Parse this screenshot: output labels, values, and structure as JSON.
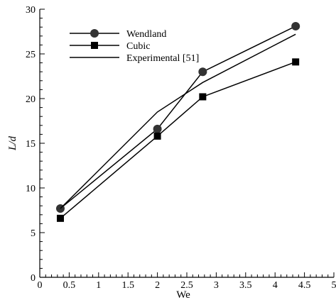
{
  "chart_data": {
    "type": "line",
    "title": "",
    "xlabel": "We",
    "ylabel": "L/d",
    "xlim": [
      0,
      5
    ],
    "ylim": [
      0,
      30
    ],
    "xticks": [
      "0",
      "0.5",
      "1",
      "1.5",
      "2",
      "2.5",
      "3",
      "3.5",
      "4",
      "4.5",
      "5"
    ],
    "yticks": [
      "0",
      "5",
      "10",
      "15",
      "20",
      "25",
      "30"
    ],
    "grid": false,
    "legend_position": "top-left",
    "series": [
      {
        "name": "Wendland",
        "marker": "circle",
        "color": "#000000",
        "x": [
          0.35,
          2.0,
          2.77,
          4.35
        ],
        "y": [
          7.7,
          16.6,
          23.0,
          28.1
        ]
      },
      {
        "name": "Cubic",
        "marker": "square",
        "color": "#000000",
        "x": [
          0.35,
          2.0,
          2.77,
          4.35
        ],
        "y": [
          6.6,
          15.8,
          20.2,
          24.1
        ]
      },
      {
        "name": "Experimental [51]",
        "marker": "none",
        "color": "#000000",
        "x": [
          0.35,
          2.0,
          2.77,
          4.35
        ],
        "y": [
          7.7,
          18.5,
          21.8,
          27.2
        ]
      }
    ]
  }
}
